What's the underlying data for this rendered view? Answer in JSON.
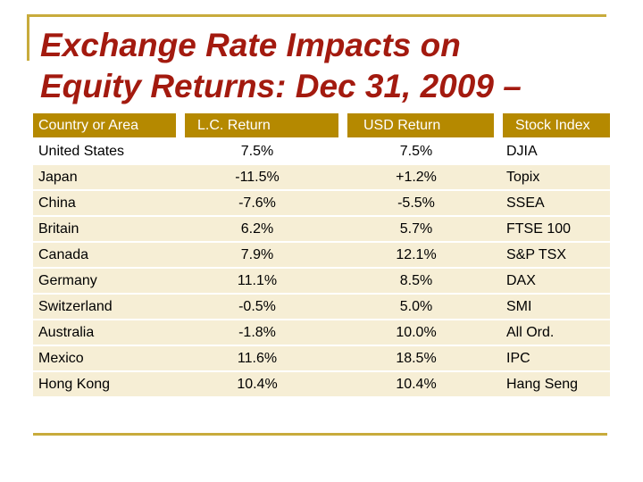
{
  "title": {
    "line1": "Exchange Rate Impacts on",
    "line2": "Equity Returns: Dec 31, 2009 –"
  },
  "table": {
    "headers": [
      "Country or Area",
      "L.C. Return",
      "USD Return",
      "Stock Index"
    ],
    "rows": [
      [
        "United States",
        "7.5%",
        "7.5%",
        "DJIA"
      ],
      [
        "Japan",
        "-11.5%",
        "+1.2%",
        "Topix"
      ],
      [
        "China",
        "-7.6%",
        "-5.5%",
        "SSEA"
      ],
      [
        "Britain",
        "6.2%",
        "5.7%",
        "FTSE 100"
      ],
      [
        "Canada",
        "7.9%",
        "12.1%",
        "S&P TSX"
      ],
      [
        "Germany",
        "11.1%",
        "8.5%",
        "DAX"
      ],
      [
        "Switzerland",
        "-0.5%",
        "5.0%",
        "SMI"
      ],
      [
        "Australia",
        "-1.8%",
        "10.0%",
        "All Ord."
      ],
      [
        "Mexico",
        "11.6%",
        "18.5%",
        "IPC"
      ],
      [
        "Hong Kong",
        "10.4%",
        "10.4%",
        "Hang Seng"
      ]
    ]
  },
  "colors": {
    "title": "#a31a0f",
    "header_bg": "#b58900",
    "row_bg": "#f6eed5",
    "frame": "#c8ab3c"
  }
}
